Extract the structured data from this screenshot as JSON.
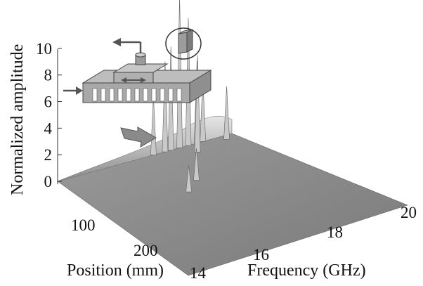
{
  "chart_data": {
    "type": "area",
    "title": "",
    "zlabel": "Normalized amplitude",
    "xlabel": "Frequency (GHz)",
    "ylabel": "Position (mm)",
    "z_ticks": [
      "0",
      "2",
      "4",
      "6",
      "8",
      "10"
    ],
    "x_ticks": [
      "14",
      "16",
      "18",
      "20"
    ],
    "y_ticks": [
      "100",
      "200"
    ],
    "zlim": [
      0,
      11
    ],
    "xlim": [
      14,
      20
    ],
    "ylim": [
      0,
      270
    ],
    "peaks": [
      {
        "freq": 18.2,
        "position": 0,
        "amplitude": 11.5
      },
      {
        "freq": 18.5,
        "position": 0,
        "amplitude": 9.6
      },
      {
        "freq": 17.9,
        "position": 0,
        "amplitude": 7.8
      },
      {
        "freq": 17.7,
        "position": 0,
        "amplitude": 6.8
      },
      {
        "freq": 18.8,
        "position": 0,
        "amplitude": 6.2
      },
      {
        "freq": 18.4,
        "position": 20,
        "amplitude": 7.3
      },
      {
        "freq": 19.0,
        "position": 0,
        "amplitude": 4.8
      },
      {
        "freq": 19.6,
        "position": 10,
        "amplitude": 4.0
      },
      {
        "freq": 17.3,
        "position": 0,
        "amplitude": 4.4
      },
      {
        "freq": 17.2,
        "position": 80,
        "amplitude": 2.4
      },
      {
        "freq": 16.6,
        "position": 100,
        "amplitude": 2.0
      }
    ],
    "colors": {
      "surface": "#8e8e8e",
      "surface_light": "#c9c9c9",
      "inset": "#a8a8a8"
    }
  }
}
